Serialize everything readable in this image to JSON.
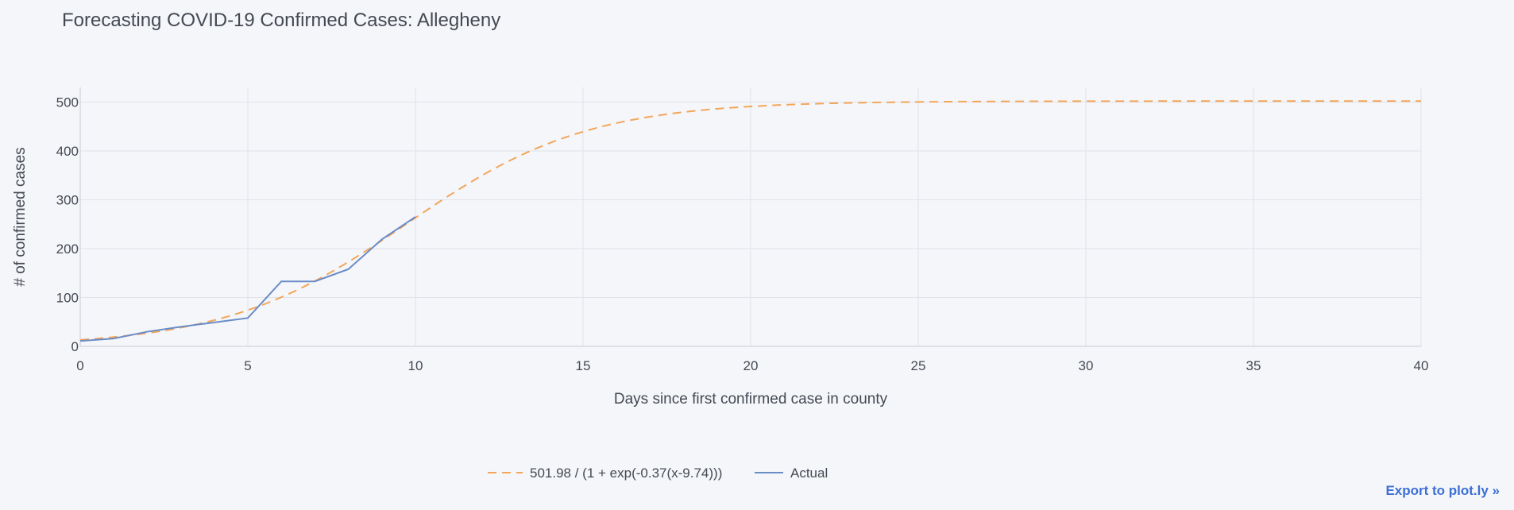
{
  "chart_data": {
    "type": "line",
    "title": "Forecasting COVID-19 Confirmed Cases: Allegheny",
    "xlabel": "Days since first confirmed case in county",
    "ylabel": "# of confirmed cases",
    "xlim": [
      0,
      40
    ],
    "ylim": [
      0,
      530
    ],
    "xticks": [
      0,
      5,
      10,
      15,
      20,
      25,
      30,
      35,
      40
    ],
    "yticks": [
      0,
      100,
      200,
      300,
      400,
      500
    ],
    "grid": true,
    "legend_position": "bottom-center",
    "series": [
      {
        "name": "501.98 / (1 + exp(-0.37(x-9.74)))",
        "style": "dashed",
        "color": "#f2a65a",
        "model": {
          "L": 501.98,
          "k": 0.37,
          "x0": 9.74
        },
        "x_range": [
          0,
          40
        ]
      },
      {
        "name": "Actual",
        "style": "solid",
        "color": "#6a8cc7",
        "x": [
          0,
          1,
          2,
          3,
          4,
          5,
          6,
          7,
          8,
          9,
          10
        ],
        "values": [
          11,
          16,
          30,
          40,
          49,
          58,
          133,
          133,
          158,
          219,
          265
        ]
      }
    ]
  },
  "export_label": "Export to plot.ly »"
}
